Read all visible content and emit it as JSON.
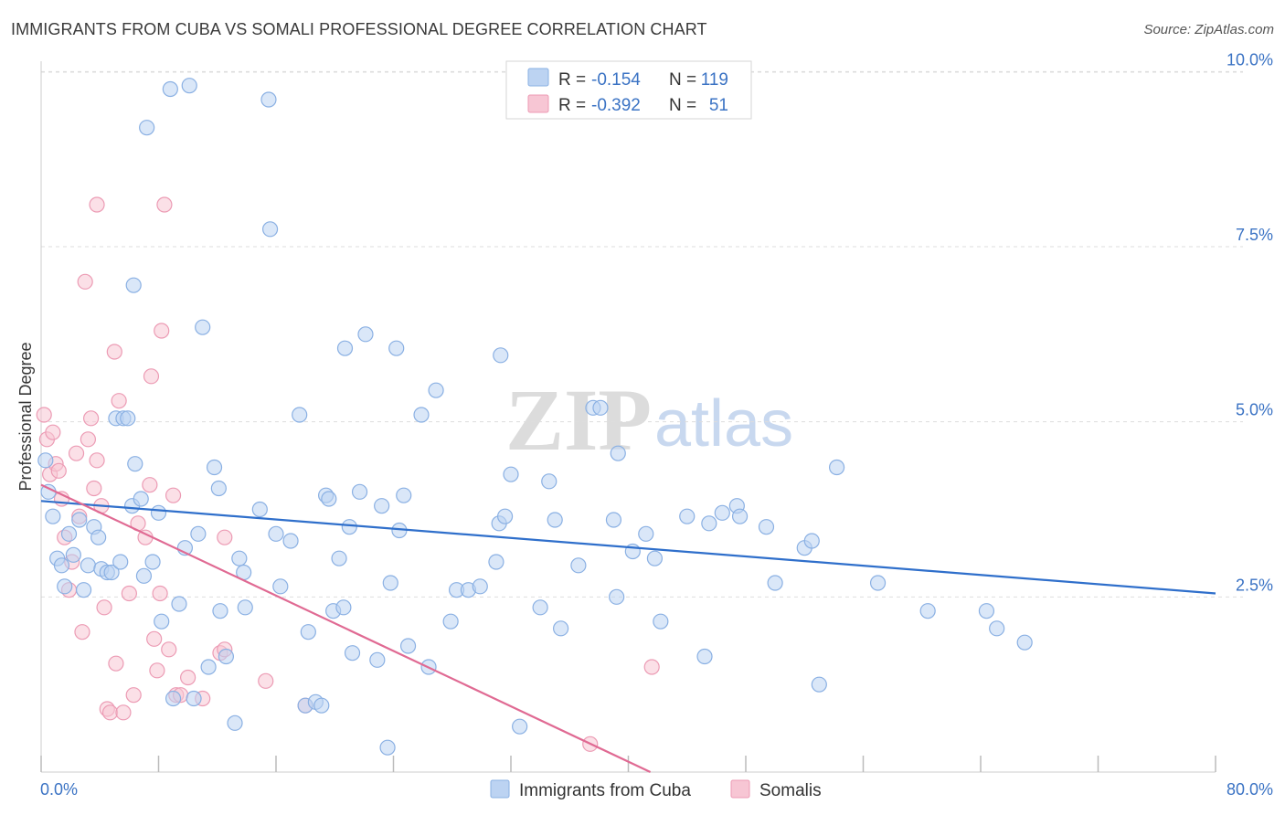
{
  "title": "IMMIGRANTS FROM CUBA VS SOMALI PROFESSIONAL DEGREE CORRELATION CHART",
  "source": "Source: ZipAtlas.com",
  "watermark": {
    "zip": "ZIP",
    "atlas": "atlas"
  },
  "colors": {
    "cuba_fill": "#bcd3f2",
    "cuba_stroke": "#8ab0e3",
    "cuba_line": "#2f6fcb",
    "somali_fill": "#f7c6d4",
    "somali_stroke": "#ec9bb4",
    "somali_line": "#e06a93",
    "grid": "#dddddd",
    "axis_text": "#3b73c4"
  },
  "legend": {
    "row1": {
      "r_label": "R =",
      "r_value": "-0.154",
      "n_label": "N =",
      "n_value": "119"
    },
    "row2": {
      "r_label": "R =",
      "r_value": "-0.392",
      "n_label": "N =",
      "n_value": "51"
    }
  },
  "bottom_legend": {
    "cuba": "Immigrants from Cuba",
    "somali": "Somalis"
  },
  "chart_data": {
    "type": "scatter",
    "ylabel": "Professional Degree",
    "xlim": [
      0,
      80
    ],
    "ylim": [
      0,
      10.2
    ],
    "x_tick_labels": [
      "0.0%",
      "80.0%"
    ],
    "y_ticks": [
      2.5,
      5.0,
      7.5,
      10.0
    ],
    "y_tick_labels": [
      "2.5%",
      "5.0%",
      "7.5%",
      "10.0%"
    ],
    "grid": "horizontal dashed",
    "legend_position": "top-center",
    "series": [
      {
        "name": "Immigrants from Cuba",
        "r": -0.154,
        "n": 119,
        "trend": [
          [
            0,
            3.87
          ],
          [
            80,
            2.55
          ]
        ],
        "points": [
          [
            0.3,
            4.45
          ],
          [
            0.5,
            4.0
          ],
          [
            0.8,
            3.65
          ],
          [
            1.1,
            3.05
          ],
          [
            1.4,
            2.95
          ],
          [
            1.6,
            2.65
          ],
          [
            1.9,
            3.4
          ],
          [
            2.2,
            3.1
          ],
          [
            2.6,
            3.6
          ],
          [
            2.9,
            2.6
          ],
          [
            3.2,
            2.95
          ],
          [
            3.6,
            3.5
          ],
          [
            3.9,
            3.35
          ],
          [
            4.1,
            2.9
          ],
          [
            4.5,
            2.85
          ],
          [
            4.8,
            2.85
          ],
          [
            5.1,
            5.05
          ],
          [
            5.4,
            3.0
          ],
          [
            5.6,
            5.05
          ],
          [
            5.9,
            5.05
          ],
          [
            6.2,
            3.8
          ],
          [
            6.3,
            6.95
          ],
          [
            6.4,
            4.4
          ],
          [
            6.8,
            3.9
          ],
          [
            7.0,
            2.8
          ],
          [
            7.2,
            9.2
          ],
          [
            7.6,
            3.0
          ],
          [
            8.0,
            3.7
          ],
          [
            8.2,
            2.15
          ],
          [
            8.8,
            9.75
          ],
          [
            9.0,
            1.05
          ],
          [
            9.4,
            2.4
          ],
          [
            9.8,
            3.2
          ],
          [
            10.1,
            9.8
          ],
          [
            10.4,
            1.05
          ],
          [
            10.7,
            3.4
          ],
          [
            11.0,
            6.35
          ],
          [
            11.4,
            1.5
          ],
          [
            11.8,
            4.35
          ],
          [
            12.1,
            4.05
          ],
          [
            12.2,
            2.3
          ],
          [
            12.6,
            1.65
          ],
          [
            13.2,
            0.7
          ],
          [
            13.5,
            3.05
          ],
          [
            13.8,
            2.85
          ],
          [
            13.9,
            2.35
          ],
          [
            14.9,
            3.75
          ],
          [
            15.5,
            9.6
          ],
          [
            15.6,
            7.75
          ],
          [
            16.0,
            3.4
          ],
          [
            16.3,
            2.65
          ],
          [
            17.0,
            3.3
          ],
          [
            17.6,
            5.1
          ],
          [
            18.0,
            0.95
          ],
          [
            18.2,
            2.0
          ],
          [
            18.7,
            1.0
          ],
          [
            19.1,
            0.95
          ],
          [
            19.4,
            3.95
          ],
          [
            19.6,
            3.9
          ],
          [
            19.9,
            2.3
          ],
          [
            20.3,
            3.05
          ],
          [
            20.6,
            2.35
          ],
          [
            20.7,
            6.05
          ],
          [
            21.0,
            3.5
          ],
          [
            21.2,
            1.7
          ],
          [
            21.7,
            4.0
          ],
          [
            22.1,
            6.25
          ],
          [
            22.9,
            1.6
          ],
          [
            23.2,
            3.8
          ],
          [
            23.6,
            0.35
          ],
          [
            23.8,
            2.7
          ],
          [
            24.2,
            6.05
          ],
          [
            24.4,
            3.45
          ],
          [
            24.7,
            3.95
          ],
          [
            25.0,
            1.8
          ],
          [
            25.9,
            5.1
          ],
          [
            26.4,
            1.5
          ],
          [
            26.9,
            5.45
          ],
          [
            27.9,
            2.15
          ],
          [
            28.3,
            2.6
          ],
          [
            29.1,
            2.6
          ],
          [
            29.9,
            2.65
          ],
          [
            31.0,
            3.0
          ],
          [
            31.2,
            3.55
          ],
          [
            31.3,
            5.95
          ],
          [
            31.6,
            3.65
          ],
          [
            32.0,
            4.25
          ],
          [
            32.6,
            0.65
          ],
          [
            34.0,
            2.35
          ],
          [
            34.6,
            4.15
          ],
          [
            35.0,
            3.6
          ],
          [
            35.4,
            2.05
          ],
          [
            36.6,
            2.95
          ],
          [
            37.6,
            5.2
          ],
          [
            38.1,
            5.2
          ],
          [
            39.0,
            3.6
          ],
          [
            39.2,
            2.5
          ],
          [
            39.3,
            4.55
          ],
          [
            40.3,
            3.15
          ],
          [
            41.2,
            3.4
          ],
          [
            41.8,
            3.05
          ],
          [
            42.2,
            2.15
          ],
          [
            44.0,
            3.65
          ],
          [
            45.2,
            1.65
          ],
          [
            45.5,
            3.55
          ],
          [
            46.4,
            3.7
          ],
          [
            47.4,
            3.8
          ],
          [
            47.6,
            3.65
          ],
          [
            49.4,
            3.5
          ],
          [
            50.0,
            2.7
          ],
          [
            52.0,
            3.2
          ],
          [
            52.5,
            3.3
          ],
          [
            53.0,
            1.25
          ],
          [
            54.2,
            4.35
          ],
          [
            57.0,
            2.7
          ],
          [
            60.4,
            2.3
          ],
          [
            64.4,
            2.3
          ],
          [
            65.1,
            2.05
          ],
          [
            67.0,
            1.85
          ]
        ]
      },
      {
        "name": "Somalis",
        "r": -0.392,
        "n": 51,
        "trend": [
          [
            0,
            4.1
          ],
          [
            41.5,
            0.0
          ]
        ],
        "points": [
          [
            0.2,
            5.1
          ],
          [
            0.4,
            4.75
          ],
          [
            0.6,
            4.25
          ],
          [
            0.8,
            4.85
          ],
          [
            1.0,
            4.4
          ],
          [
            1.2,
            4.3
          ],
          [
            1.4,
            3.9
          ],
          [
            1.6,
            3.35
          ],
          [
            1.9,
            2.6
          ],
          [
            2.1,
            3.0
          ],
          [
            2.4,
            4.55
          ],
          [
            2.6,
            3.65
          ],
          [
            2.8,
            2.0
          ],
          [
            3.0,
            7.0
          ],
          [
            3.2,
            4.75
          ],
          [
            3.4,
            5.05
          ],
          [
            3.6,
            4.05
          ],
          [
            3.8,
            4.45
          ],
          [
            3.8,
            8.1
          ],
          [
            4.1,
            3.8
          ],
          [
            4.3,
            2.35
          ],
          [
            4.5,
            0.9
          ],
          [
            4.7,
            0.85
          ],
          [
            5.0,
            6.0
          ],
          [
            5.1,
            1.55
          ],
          [
            5.3,
            5.3
          ],
          [
            5.6,
            0.85
          ],
          [
            6.0,
            2.55
          ],
          [
            6.3,
            1.1
          ],
          [
            6.6,
            3.55
          ],
          [
            7.1,
            3.35
          ],
          [
            7.4,
            4.1
          ],
          [
            7.5,
            5.65
          ],
          [
            7.7,
            1.9
          ],
          [
            7.9,
            1.45
          ],
          [
            8.1,
            2.55
          ],
          [
            8.2,
            6.3
          ],
          [
            8.4,
            8.1
          ],
          [
            8.7,
            1.75
          ],
          [
            9.0,
            3.95
          ],
          [
            9.2,
            1.1
          ],
          [
            9.5,
            1.1
          ],
          [
            10.0,
            1.35
          ],
          [
            11.0,
            1.05
          ],
          [
            12.2,
            1.7
          ],
          [
            12.5,
            1.75
          ],
          [
            12.5,
            3.35
          ],
          [
            15.3,
            1.3
          ],
          [
            18.0,
            0.95
          ],
          [
            37.4,
            0.4
          ],
          [
            41.6,
            1.5
          ]
        ]
      }
    ]
  }
}
